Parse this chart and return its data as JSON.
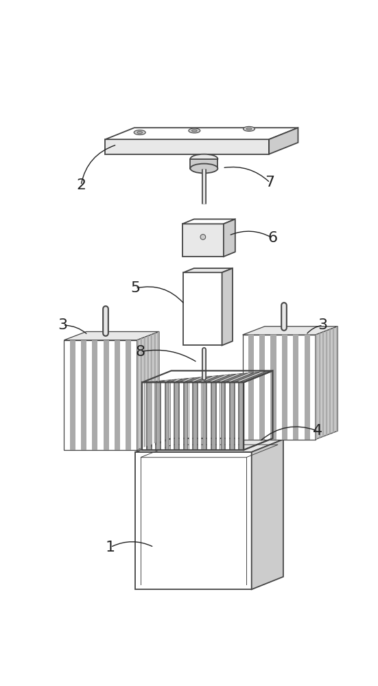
{
  "background_color": "#ffffff",
  "line_color": "#444444",
  "fill_white": "#ffffff",
  "fill_light": "#e8e8e8",
  "fill_mid": "#cccccc",
  "fill_dark": "#aaaaaa",
  "fill_darker": "#888888",
  "label_fontsize": 16,
  "label_color": "#222222"
}
